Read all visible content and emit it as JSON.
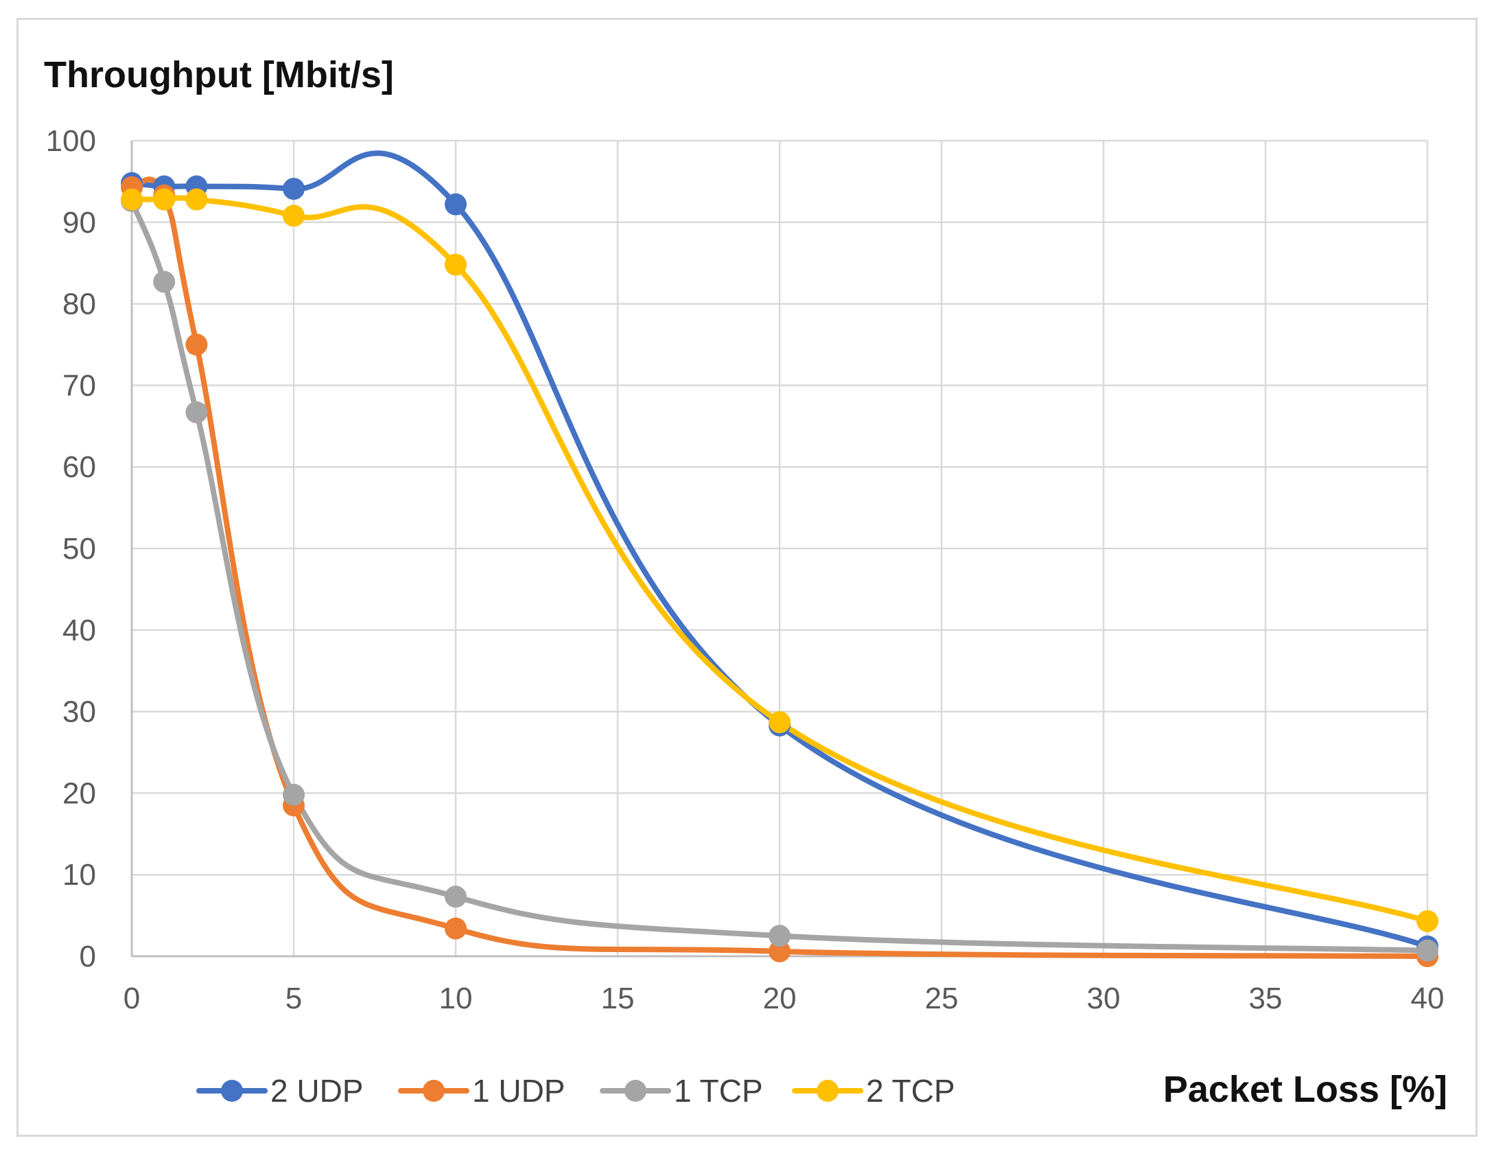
{
  "chart_data": {
    "type": "line",
    "xlabel": "Packet Loss [%]",
    "ylabel": "Throughput [Mbit/s]",
    "xlim": [
      0,
      40
    ],
    "ylim": [
      0,
      100
    ],
    "x_ticks": [
      0,
      5,
      10,
      15,
      20,
      25,
      30,
      35,
      40
    ],
    "y_ticks": [
      0,
      10,
      20,
      30,
      40,
      50,
      60,
      70,
      80,
      90,
      100
    ],
    "grid": true,
    "legend_position": "bottom",
    "series": [
      {
        "name": "2 UDP",
        "color": "#4472c4",
        "points": [
          [
            0,
            94.8
          ],
          [
            1,
            94.4
          ],
          [
            2,
            94.4
          ],
          [
            5,
            94.1
          ],
          [
            10,
            92.2
          ],
          [
            20,
            28.3
          ],
          [
            40,
            1.2
          ]
        ]
      },
      {
        "name": "1 UDP",
        "color": "#ed7d31",
        "points": [
          [
            0,
            94.3
          ],
          [
            1,
            93.3
          ],
          [
            2,
            75.0
          ],
          [
            5,
            18.5
          ],
          [
            10,
            3.4
          ],
          [
            20,
            0.6
          ],
          [
            40,
            0.0
          ]
        ]
      },
      {
        "name": "1 TCP",
        "color": "#a5a5a5",
        "points": [
          [
            0,
            92.6
          ],
          [
            1,
            82.7
          ],
          [
            2,
            66.7
          ],
          [
            5,
            19.8
          ],
          [
            10,
            7.3
          ],
          [
            20,
            2.5
          ],
          [
            40,
            0.7
          ]
        ]
      },
      {
        "name": "2 TCP",
        "color": "#ffc000",
        "points": [
          [
            0,
            92.8
          ],
          [
            1,
            92.8
          ],
          [
            2,
            92.8
          ],
          [
            5,
            90.8
          ],
          [
            10,
            84.8
          ],
          [
            20,
            28.7
          ],
          [
            40,
            4.3
          ]
        ]
      }
    ]
  }
}
